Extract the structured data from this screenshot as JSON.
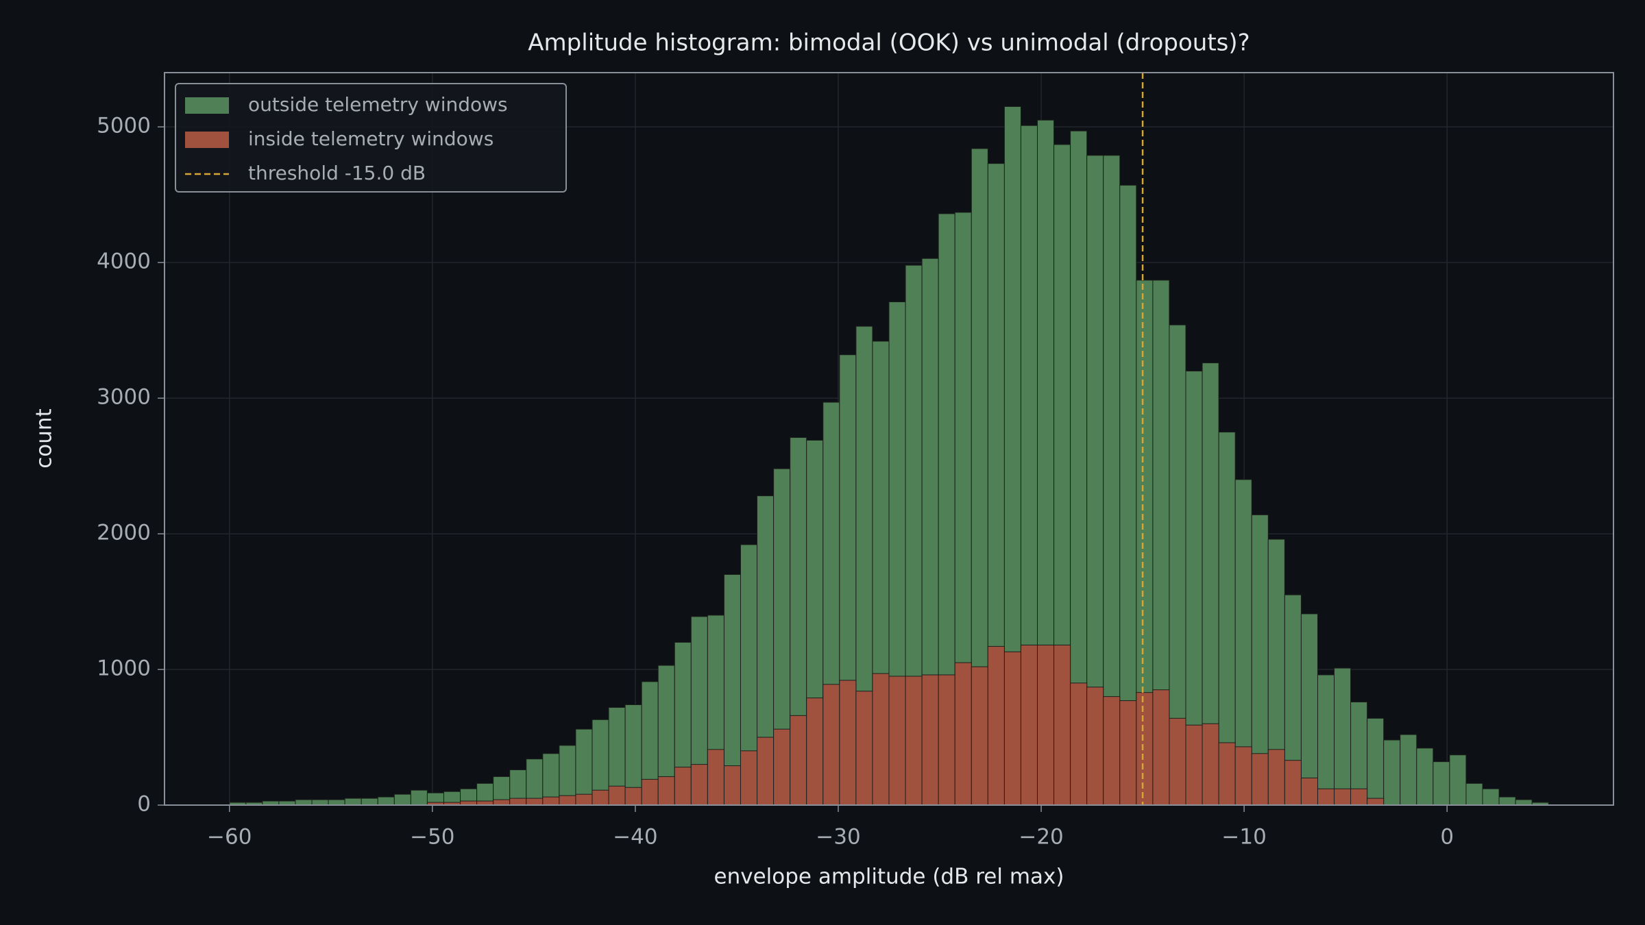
{
  "chart_data": {
    "type": "histogram",
    "title": "Amplitude histogram: bimodal (OOK) vs unimodal (dropouts)?",
    "xlabel": "envelope amplitude (dB rel max)",
    "ylabel": "count",
    "bins": [
      -60,
      -59.1875,
      -58.375,
      -57.5625,
      -56.75,
      -55.9375,
      -55.125,
      -54.3125,
      -53.5,
      -52.6875,
      -51.875,
      -51.0625,
      -50.25,
      -49.4375,
      -48.625,
      -47.8125,
      -47,
      -46.1875,
      -45.375,
      -44.5625,
      -43.75,
      -42.9375,
      -42.125,
      -41.3125,
      -40.5,
      -39.6875,
      -38.875,
      -38.0625,
      -37.25,
      -36.4375,
      -35.625,
      -34.8125,
      -34,
      -33.1875,
      -32.375,
      -31.5625,
      -30.75,
      -29.9375,
      -29.125,
      -28.3125,
      -27.5,
      -26.6875,
      -25.875,
      -25.0625,
      -24.25,
      -23.4375,
      -22.625,
      -21.8125,
      -21,
      -20.1875,
      -19.375,
      -18.5625,
      -17.75,
      -16.9375,
      -16.125,
      -15.3125,
      -14.5,
      -13.6875,
      -12.875,
      -12.0625,
      -11.25,
      -10.4375,
      -9.625,
      -8.8125,
      -8,
      -7.1875,
      -6.375,
      -5.5625,
      -4.75,
      -3.9375,
      -3.125,
      -2.3125,
      -1.5,
      -0.6875,
      0.125,
      0.9375,
      1.75,
      2.5625,
      3.375,
      4.1875,
      5
    ],
    "series": [
      {
        "name": "outside telemetry windows",
        "color": "#508055",
        "values": [
          20,
          20,
          30,
          30,
          40,
          40,
          40,
          50,
          50,
          60,
          80,
          110,
          90,
          100,
          120,
          160,
          210,
          260,
          340,
          380,
          440,
          560,
          630,
          720,
          740,
          910,
          1030,
          1200,
          1390,
          1400,
          1700,
          1920,
          2280,
          2480,
          2710,
          2690,
          2970,
          3320,
          3530,
          3420,
          3710,
          3980,
          4030,
          4360,
          4370,
          4840,
          4730,
          5150,
          5010,
          5050,
          4870,
          4970,
          4790,
          4790,
          4570,
          3870,
          3870,
          3540,
          3200,
          3260,
          2750,
          2400,
          2140,
          1960,
          1550,
          1410,
          960,
          1010,
          760,
          640,
          480,
          520,
          420,
          320,
          370,
          160,
          120,
          60,
          40,
          20
        ]
      },
      {
        "name": "inside telemetry windows",
        "color": "#a0523f",
        "values": [
          0,
          0,
          0,
          0,
          0,
          0,
          0,
          0,
          0,
          0,
          0,
          0,
          20,
          20,
          30,
          30,
          40,
          50,
          50,
          60,
          70,
          80,
          110,
          140,
          130,
          190,
          210,
          280,
          300,
          410,
          290,
          400,
          500,
          560,
          660,
          790,
          890,
          920,
          840,
          970,
          950,
          950,
          960,
          960,
          1050,
          1020,
          1170,
          1130,
          1180,
          1180,
          1180,
          900,
          870,
          800,
          770,
          830,
          850,
          640,
          590,
          600,
          460,
          430,
          380,
          410,
          330,
          200,
          120,
          120,
          120,
          50,
          0,
          0,
          0,
          0,
          0,
          0,
          0,
          0,
          0,
          0
        ]
      }
    ],
    "threshold": {
      "value": -15,
      "label": "threshold -15.0 dB",
      "color": "#d4a537"
    },
    "xlim": [
      -63.2,
      8.2
    ],
    "ylim": [
      0,
      5400
    ],
    "xticks": [
      {
        "value": -60,
        "label": "−60"
      },
      {
        "value": -50,
        "label": "−50"
      },
      {
        "value": -40,
        "label": "−40"
      },
      {
        "value": -30,
        "label": "−30"
      },
      {
        "value": -20,
        "label": "−20"
      },
      {
        "value": -10,
        "label": "−10"
      },
      0
    ],
    "yticks": [
      0,
      1000,
      2000,
      3000,
      4000,
      5000
    ],
    "grid": true,
    "legend": "upper left"
  }
}
